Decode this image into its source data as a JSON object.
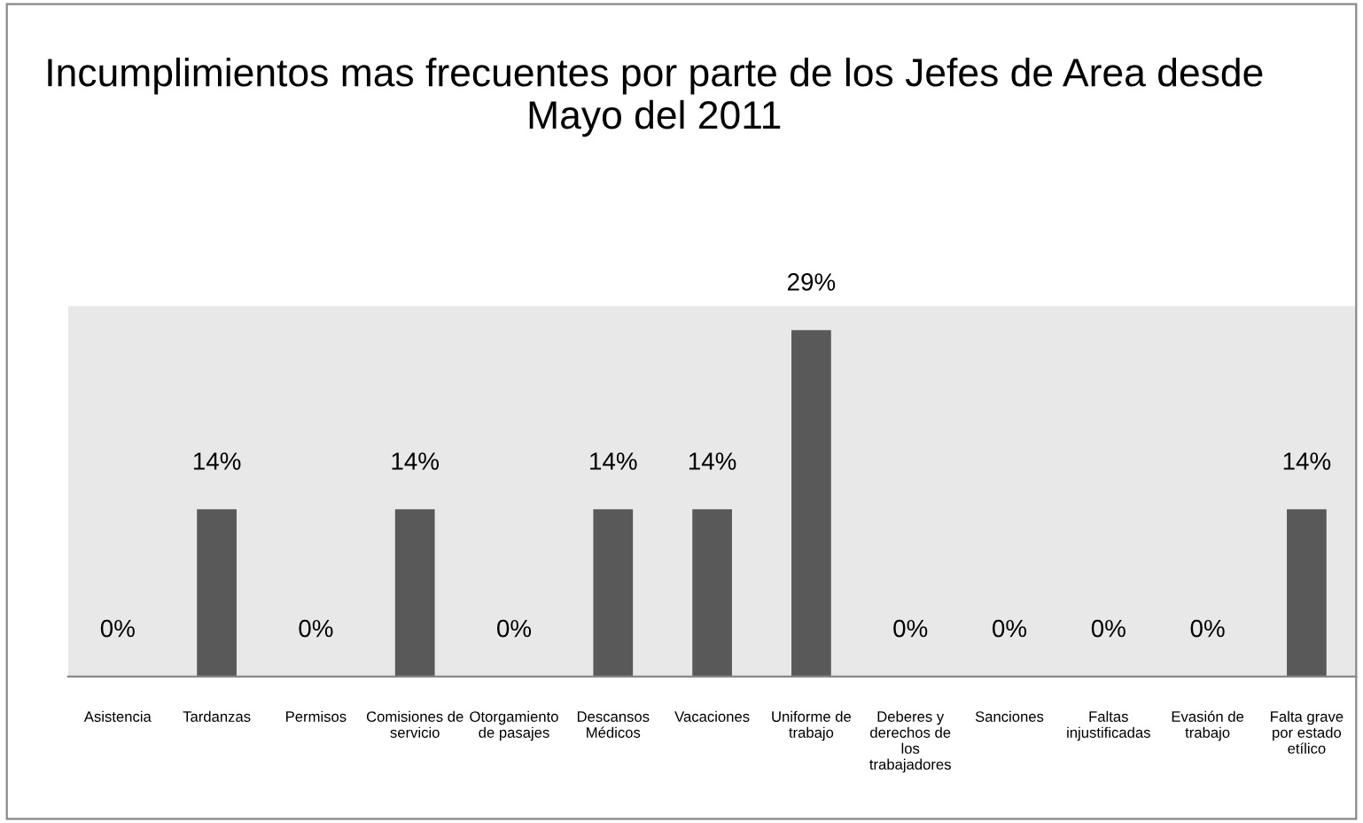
{
  "chart_data": {
    "type": "bar",
    "title": "Incumplimientos mas frecuentes por parte de los Jefes de Area desde Mayo del 2011",
    "categories": [
      "Asistencia",
      "Tardanzas",
      "Permisos",
      "Comisiones de servicio",
      "Otorgamiento de pasajes",
      "Descansos Médicos",
      "Vacaciones",
      "Uniforme de trabajo",
      "Deberes y derechos de los trabajadores",
      "Sanciones",
      "Faltas injustificadas",
      "Evasión de trabajo",
      "Falta grave por estado etílico"
    ],
    "values": [
      0,
      14,
      0,
      14,
      0,
      14,
      14,
      29,
      0,
      0,
      0,
      0,
      14
    ],
    "value_labels": [
      "0%",
      "14%",
      "0%",
      "14%",
      "0%",
      "14%",
      "14%",
      "29%",
      "0%",
      "0%",
      "0%",
      "0%",
      "14%"
    ],
    "color": "#595959",
    "ylim": [
      0,
      31
    ],
    "tick_labels": "x",
    "grid": false,
    "legend": false
  }
}
